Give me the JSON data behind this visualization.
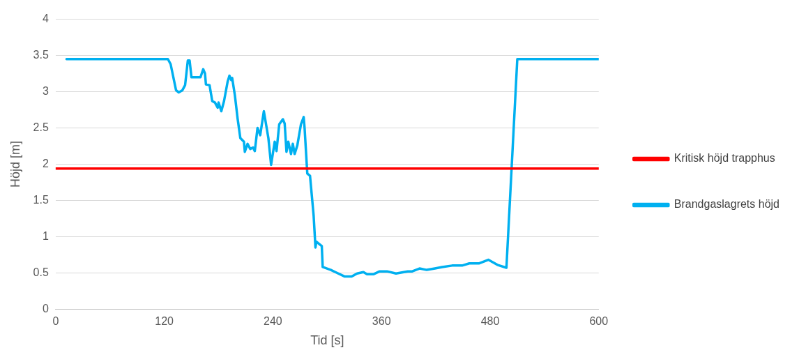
{
  "chart_data": {
    "type": "line",
    "xlabel": "Tid [s]",
    "ylabel": "Höjd [m]",
    "xlim": [
      0,
      600
    ],
    "xticks": [
      0,
      120,
      240,
      360,
      480,
      600
    ],
    "ylim": [
      0,
      4
    ],
    "yticks": [
      0,
      0.5,
      1,
      1.5,
      2,
      2.5,
      3,
      3.5,
      4
    ],
    "grid": "y",
    "legend": "right",
    "marker": "none",
    "line_style": "solid",
    "series": [
      {
        "name": "Kritisk höjd trapphus",
        "color": "#ff0000",
        "x": [
          0,
          600
        ],
        "values": [
          1.94,
          1.94
        ]
      },
      {
        "name": "Brandgaslagrets höjd",
        "color": "#00b0f0",
        "x": [
          12,
          124,
          127,
          133,
          136,
          140,
          143,
          146,
          148,
          150,
          160,
          163,
          165,
          166,
          170,
          173,
          176,
          179,
          180,
          183,
          186,
          190,
          192,
          194,
          195,
          198,
          201,
          204,
          208,
          209,
          212,
          215,
          218,
          220,
          223,
          226,
          230,
          235,
          238,
          242,
          244,
          247,
          251,
          253,
          255,
          257,
          260,
          262,
          264,
          267,
          271,
          274,
          275,
          278,
          281,
          285,
          287,
          288,
          294,
          295,
          304,
          309,
          319,
          327,
          333,
          340,
          344,
          351,
          358,
          366,
          376,
          389,
          394,
          402,
          410,
          419,
          427,
          438,
          449,
          457,
          468,
          478,
          488,
          498,
          510,
          600
        ],
        "values": [
          3.45,
          3.45,
          3.38,
          3.02,
          2.99,
          3.02,
          3.09,
          3.43,
          3.43,
          3.2,
          3.2,
          3.31,
          3.25,
          3.1,
          3.09,
          2.87,
          2.85,
          2.78,
          2.85,
          2.73,
          2.87,
          3.14,
          3.22,
          3.16,
          3.19,
          2.95,
          2.63,
          2.36,
          2.31,
          2.17,
          2.28,
          2.21,
          2.23,
          2.18,
          2.5,
          2.4,
          2.73,
          2.36,
          1.99,
          2.31,
          2.18,
          2.55,
          2.62,
          2.56,
          2.17,
          2.31,
          2.14,
          2.28,
          2.14,
          2.26,
          2.55,
          2.65,
          2.5,
          1.87,
          1.84,
          1.29,
          0.85,
          0.93,
          0.87,
          0.58,
          0.54,
          0.51,
          0.45,
          0.45,
          0.49,
          0.51,
          0.48,
          0.48,
          0.52,
          0.52,
          0.49,
          0.52,
          0.52,
          0.56,
          0.54,
          0.56,
          0.58,
          0.6,
          0.6,
          0.63,
          0.63,
          0.68,
          0.61,
          0.57,
          3.45,
          3.45
        ]
      }
    ]
  }
}
